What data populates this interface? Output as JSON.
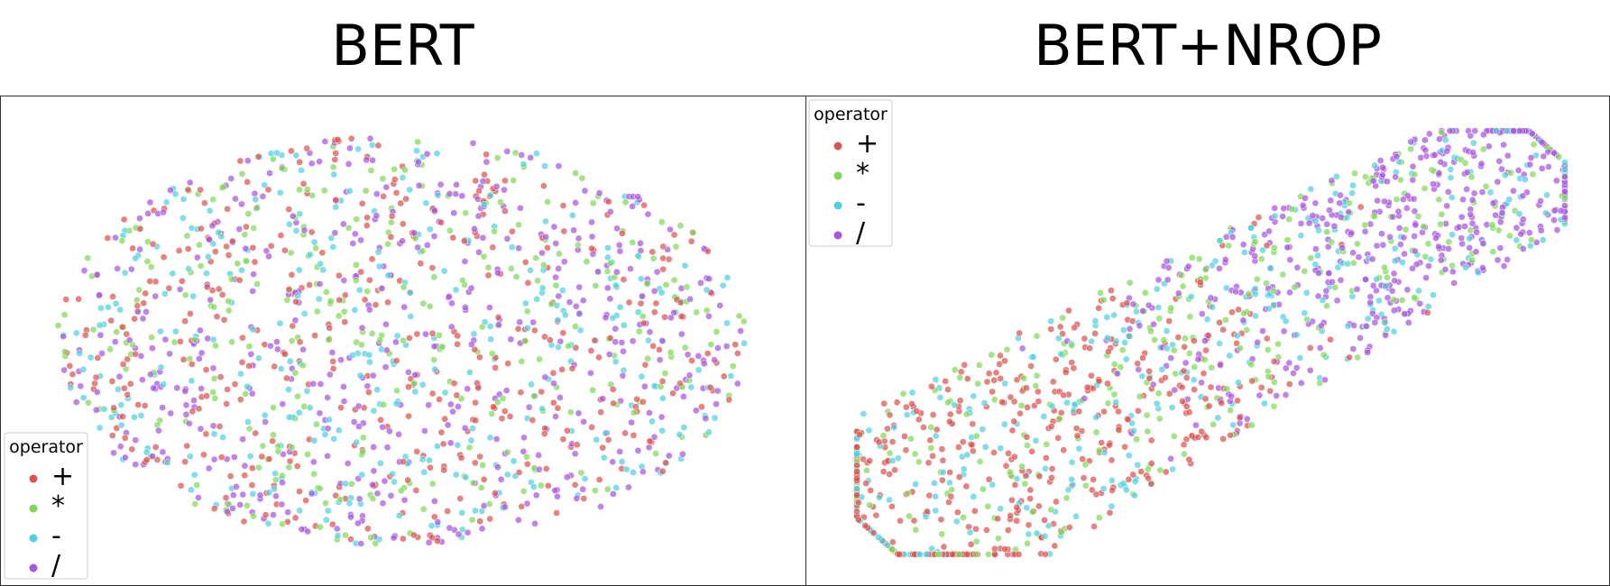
{
  "chart_data": [
    {
      "type": "scatter",
      "title": "BERT",
      "legend": {
        "title": "operator",
        "placement": "bottom-left",
        "entries": [
          "+",
          "*",
          "-",
          "/"
        ]
      },
      "grid": false,
      "axes_visible": false,
      "xlim": [
        0,
        100
      ],
      "ylim": [
        0,
        100
      ],
      "cluster_shape": "broad oval blob, all operators intermixed",
      "series": [
        {
          "name": "+",
          "color": "#d9534f",
          "n": 420
        },
        {
          "name": "*",
          "color": "#7ed957",
          "n": 300
        },
        {
          "name": "-",
          "color": "#4fd0e0",
          "n": 320
        },
        {
          "name": "/",
          "color": "#a855e0",
          "n": 480
        }
      ]
    },
    {
      "type": "scatter",
      "title": "BERT+NROP",
      "legend": {
        "title": "operator",
        "placement": "top-left",
        "entries": [
          "+",
          "*",
          "-",
          "/"
        ]
      },
      "grid": false,
      "axes_visible": false,
      "xlim": [
        0,
        100
      ],
      "ylim": [
        0,
        100
      ],
      "cluster_shape": "diagonal elongated band from lower-left to upper-right; '/' concentrated upper-right, '+' concentrated lower-left",
      "series": [
        {
          "name": "+",
          "color": "#d9534f",
          "n": 420
        },
        {
          "name": "*",
          "color": "#7ed957",
          "n": 300
        },
        {
          "name": "-",
          "color": "#4fd0e0",
          "n": 320
        },
        {
          "name": "/",
          "color": "#a855e0",
          "n": 480
        }
      ]
    }
  ]
}
